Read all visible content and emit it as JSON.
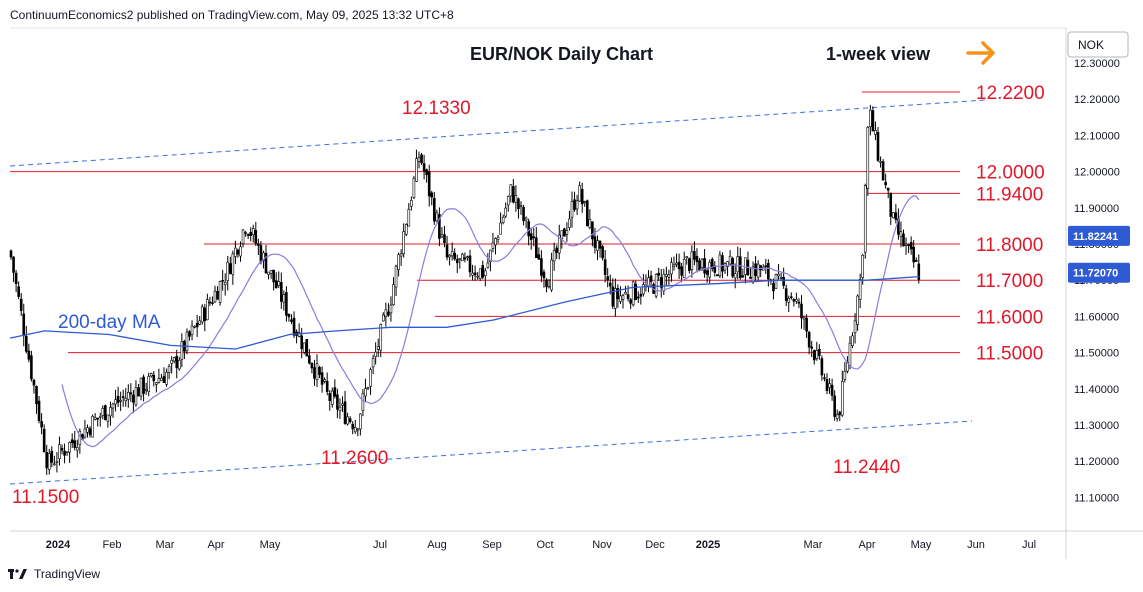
{
  "header": {
    "publisher": "ContinuumEconomics2 published on TradingView.com, May 09, 2025 13:32 UTC+8"
  },
  "footer": {
    "brand": "TradingView"
  },
  "colors": {
    "candle": "#000000",
    "level": "#e0182a",
    "ma200": "#2e5bd3",
    "ma_fast": "#8c7be0",
    "channel": "#3d6fe0",
    "arrow": "#f7931a",
    "label": "#e0182a"
  },
  "chart_data": {
    "type": "candlestick",
    "title": "EUR/NOK Daily Chart",
    "subtitle": "1-week view",
    "currency": "NOK",
    "ylim": [
      11.05,
      12.3
    ],
    "y_ticks": [
      "12.30000",
      "12.20000",
      "12.10000",
      "12.00000",
      "11.90000",
      "11.80000",
      "11.70000",
      "11.60000",
      "11.50000",
      "11.40000",
      "11.30000",
      "11.20000",
      "11.10000"
    ],
    "x_ticks": [
      "2024",
      "Feb",
      "Mar",
      "Apr",
      "May",
      "Jul",
      "Aug",
      "Sep",
      "Oct",
      "Nov",
      "Dec",
      "2025",
      "Mar",
      "Apr",
      "May",
      "Jun",
      "Jul"
    ],
    "price_tags": [
      {
        "value": 11.82241,
        "text": "11.82241",
        "color": "#2e5bd3"
      },
      {
        "value": 11.7207,
        "text": "11.72070",
        "color": "#2e5bd3"
      }
    ],
    "levels": [
      {
        "value": 12.22,
        "label": "12.2200"
      },
      {
        "value": 12.0,
        "label": "12.0000"
      },
      {
        "value": 11.94,
        "label": "11.9400"
      },
      {
        "value": 11.8,
        "label": "11.8000"
      },
      {
        "value": 11.7,
        "label": "11.7000"
      },
      {
        "value": 11.6,
        "label": "11.6000"
      },
      {
        "value": 11.5,
        "label": "11.5000"
      }
    ],
    "annotations": [
      {
        "text": "12.1330",
        "value": 12.133
      },
      {
        "text": "11.2600",
        "value": 11.26
      },
      {
        "text": "11.2440",
        "value": 11.244
      },
      {
        "text": "11.1500",
        "value": 11.15
      },
      {
        "text": "200-day MA",
        "value": 11.59
      }
    ],
    "series": [
      {
        "name": "price",
        "dates": [
          "2023-12-22",
          "2024-01-12",
          "2024-02-15",
          "2024-03-20",
          "2024-04-20",
          "2024-05-01",
          "2024-06-15",
          "2024-07-01",
          "2024-07-20",
          "2024-08-05",
          "2024-08-20",
          "2024-09-10",
          "2024-09-25",
          "2024-10-15",
          "2024-11-01",
          "2024-11-20",
          "2024-12-10",
          "2025-01-01",
          "2025-01-20",
          "2025-02-10",
          "2025-03-01",
          "2025-03-25",
          "2025-04-07",
          "2025-04-11",
          "2025-04-25",
          "2025-05-09"
        ],
        "values": [
          11.78,
          11.19,
          11.35,
          11.45,
          11.72,
          11.86,
          11.38,
          11.3,
          11.65,
          12.05,
          11.76,
          11.72,
          11.95,
          11.7,
          11.95,
          11.65,
          11.68,
          11.75,
          11.74,
          11.73,
          11.65,
          11.32,
          11.72,
          12.17,
          11.85,
          11.72
        ]
      },
      {
        "name": "200-day MA",
        "dates": [
          "2023-12-22",
          "2024-01-10",
          "2024-02-15",
          "2024-03-20",
          "2024-04-25",
          "2024-05-25",
          "2024-06-20",
          "2024-07-20",
          "2024-08-20",
          "2024-09-15",
          "2024-10-25",
          "2024-12-01",
          "2025-01-15",
          "2025-02-20",
          "2025-03-20",
          "2025-04-10",
          "2025-05-09"
        ],
        "values": [
          11.54,
          11.56,
          11.55,
          11.52,
          11.51,
          11.55,
          11.56,
          11.57,
          11.57,
          11.59,
          11.64,
          11.68,
          11.69,
          11.7,
          11.7,
          11.7,
          11.71
        ]
      }
    ]
  }
}
